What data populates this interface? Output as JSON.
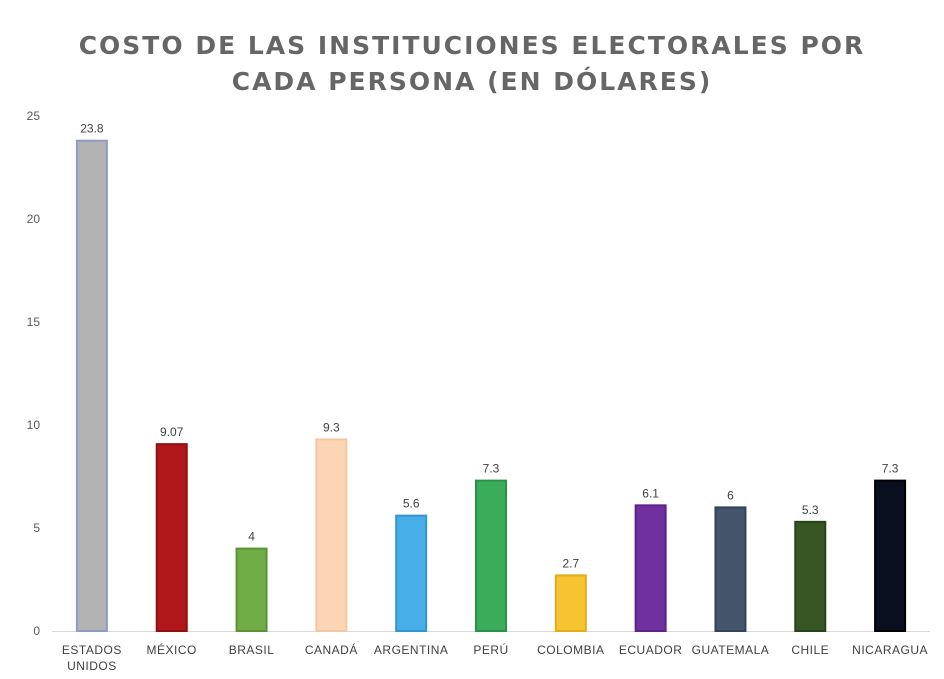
{
  "chart_data": {
    "type": "bar",
    "title_lines": [
      "COSTO DE LAS INSTITUCIONES ELECTORALES POR",
      "CADA PERSONA (EN DÓLARES)"
    ],
    "xlabel": "",
    "ylabel": "",
    "ylim": [
      0,
      25
    ],
    "yticks": [
      0,
      5,
      10,
      15,
      20,
      25
    ],
    "grid": false,
    "legend": "none",
    "categories": [
      [
        "ESTADOS",
        "UNIDOS"
      ],
      [
        "MÉXICO"
      ],
      [
        "BRASIL"
      ],
      [
        "CANADÁ"
      ],
      [
        "ARGENTINA"
      ],
      [
        "PERÚ"
      ],
      [
        "COLOMBIA"
      ],
      [
        "ECUADOR"
      ],
      [
        "GUATEMALA"
      ],
      [
        "CHILE"
      ],
      [
        "NICARAGUA"
      ]
    ],
    "values": [
      23.8,
      9.07,
      4,
      9.3,
      5.6,
      7.3,
      2.7,
      6.1,
      6,
      5.3,
      7.3
    ],
    "value_labels": [
      "23.8",
      "9.07",
      "4",
      "9.3",
      "5.6",
      "7.3",
      "2.7",
      "6.1",
      "6",
      "5.3",
      "7.3"
    ],
    "colors": [
      "#b3b3b3",
      "#b0171a",
      "#70ad47",
      "#fcd5b5",
      "#47aee8",
      "#3aac5a",
      "#f5c430",
      "#7030a0",
      "#44546a",
      "#375623",
      "#0a0f20"
    ],
    "border_colors": [
      "#8e9cc0",
      "#8e1010",
      "#5a9236",
      "#f2c8a4",
      "#3494cf",
      "#2a9148",
      "#e0ae1c",
      "#5c2488",
      "#34425a",
      "#28421a",
      "#000000"
    ]
  }
}
